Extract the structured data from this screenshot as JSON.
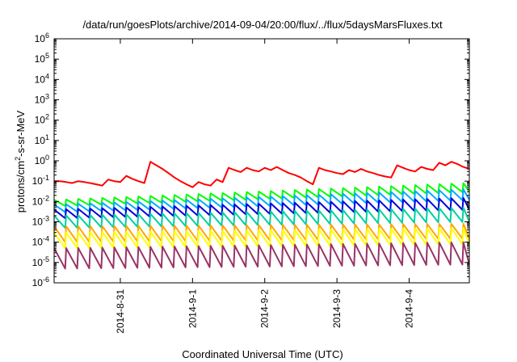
{
  "chart_data": {
    "type": "line",
    "title": "/data/run/goesPlots/archive/2014-09-04/20:00/flux/../flux/5daysMarsFluxes.txt",
    "xlabel": "Coordinated Universal Time (UTC)",
    "ylabel": {
      "prefix": "protons/cm",
      "superscript": "2",
      "suffix": "-s-sr-MeV"
    },
    "y_scale": "log",
    "ylim": [
      1e-06,
      1000000.0
    ],
    "y_ticks": [
      {
        "value": 1e-06,
        "base": "10",
        "exp": "-6"
      },
      {
        "value": 1e-05,
        "base": "10",
        "exp": "-5"
      },
      {
        "value": 0.0001,
        "base": "10",
        "exp": "-4"
      },
      {
        "value": 0.001,
        "base": "10",
        "exp": "-3"
      },
      {
        "value": 0.01,
        "base": "10",
        "exp": "-2"
      },
      {
        "value": 0.1,
        "base": "10",
        "exp": "-1"
      },
      {
        "value": 1,
        "base": "10",
        "exp": "0"
      },
      {
        "value": 10,
        "base": "10",
        "exp": "1"
      },
      {
        "value": 100,
        "base": "10",
        "exp": "2"
      },
      {
        "value": 1000,
        "base": "10",
        "exp": "3"
      },
      {
        "value": 10000,
        "base": "10",
        "exp": "4"
      },
      {
        "value": 100000,
        "base": "10",
        "exp": "5"
      },
      {
        "value": 1000000,
        "base": "10",
        "exp": "6"
      }
    ],
    "xlim": [
      "2014-08-30T02:00",
      "2014-09-04T20:00"
    ],
    "x_ticks": [
      {
        "value": "2014-08-31T00:00",
        "label": "2014-8-31"
      },
      {
        "value": "2014-09-01T00:00",
        "label": "2014-9-1"
      },
      {
        "value": "2014-09-02T00:00",
        "label": "2014-9-2"
      },
      {
        "value": "2014-09-03T00:00",
        "label": "2014-9-3"
      },
      {
        "value": "2014-09-04T00:00",
        "label": "2014-9-4"
      }
    ],
    "grid": false,
    "series": [
      {
        "color": "#ff0000",
        "values": [
          [
            "2014-08-30T02:00",
            0.1
          ],
          [
            "2014-08-30T04:00",
            0.1
          ],
          [
            "2014-08-30T06:00",
            0.09
          ],
          [
            "2014-08-30T08:00",
            0.08
          ],
          [
            "2014-08-30T10:00",
            0.1
          ],
          [
            "2014-08-30T12:00",
            0.09
          ],
          [
            "2014-08-30T14:00",
            0.08
          ],
          [
            "2014-08-30T16:00",
            0.07
          ],
          [
            "2014-08-30T18:00",
            0.06
          ],
          [
            "2014-08-30T20:00",
            0.12
          ],
          [
            "2014-08-30T22:00",
            0.1
          ],
          [
            "2014-08-31T00:00",
            0.09
          ],
          [
            "2014-08-31T02:00",
            0.18
          ],
          [
            "2014-08-31T04:00",
            0.13
          ],
          [
            "2014-08-31T06:00",
            0.1
          ],
          [
            "2014-08-31T08:00",
            0.08
          ],
          [
            "2014-08-31T10:00",
            0.9
          ],
          [
            "2014-08-31T12:00",
            0.6
          ],
          [
            "2014-08-31T14:00",
            0.4
          ],
          [
            "2014-08-31T16:00",
            0.25
          ],
          [
            "2014-08-31T18:00",
            0.15
          ],
          [
            "2014-08-31T20:00",
            0.1
          ],
          [
            "2014-08-31T22:00",
            0.07
          ],
          [
            "2014-09-01T00:00",
            0.05
          ],
          [
            "2014-09-01T02:00",
            0.09
          ],
          [
            "2014-09-01T04:00",
            0.07
          ],
          [
            "2014-09-01T06:00",
            0.06
          ],
          [
            "2014-09-01T08:00",
            0.12
          ],
          [
            "2014-09-01T10:00",
            0.09
          ],
          [
            "2014-09-01T12:00",
            0.45
          ],
          [
            "2014-09-01T14:00",
            0.35
          ],
          [
            "2014-09-01T16:00",
            0.28
          ],
          [
            "2014-09-01T18:00",
            0.45
          ],
          [
            "2014-09-01T20:00",
            0.35
          ],
          [
            "2014-09-01T22:00",
            0.3
          ],
          [
            "2014-09-02T00:00",
            0.45
          ],
          [
            "2014-09-02T02:00",
            0.35
          ],
          [
            "2014-09-02T04:00",
            0.5
          ],
          [
            "2014-09-02T06:00",
            0.35
          ],
          [
            "2014-09-02T08:00",
            0.25
          ],
          [
            "2014-09-02T10:00",
            0.2
          ],
          [
            "2014-09-02T12:00",
            0.15
          ],
          [
            "2014-09-02T14:00",
            0.1
          ],
          [
            "2014-09-02T16:00",
            0.07
          ],
          [
            "2014-09-02T18:00",
            0.45
          ],
          [
            "2014-09-02T20:00",
            0.35
          ],
          [
            "2014-09-02T22:00",
            0.3
          ],
          [
            "2014-09-03T00:00",
            0.25
          ],
          [
            "2014-09-03T02:00",
            0.22
          ],
          [
            "2014-09-03T04:00",
            0.35
          ],
          [
            "2014-09-03T06:00",
            0.28
          ],
          [
            "2014-09-03T08:00",
            0.4
          ],
          [
            "2014-09-03T10:00",
            0.3
          ],
          [
            "2014-09-03T12:00",
            0.25
          ],
          [
            "2014-09-03T14:00",
            0.2
          ],
          [
            "2014-09-03T16:00",
            0.17
          ],
          [
            "2014-09-03T18:00",
            0.15
          ],
          [
            "2014-09-03T20:00",
            0.6
          ],
          [
            "2014-09-03T22:00",
            0.45
          ],
          [
            "2014-09-04T00:00",
            0.35
          ],
          [
            "2014-09-04T02:00",
            0.3
          ],
          [
            "2014-09-04T04:00",
            0.5
          ],
          [
            "2014-09-04T06:00",
            0.4
          ],
          [
            "2014-09-04T08:00",
            0.35
          ],
          [
            "2014-09-04T10:00",
            0.8
          ],
          [
            "2014-09-04T12:00",
            0.6
          ],
          [
            "2014-09-04T14:00",
            0.9
          ],
          [
            "2014-09-04T16:00",
            0.7
          ],
          [
            "2014-09-04T18:00",
            0.5
          ],
          [
            "2014-09-04T20:00",
            0.4
          ]
        ]
      },
      {
        "color": "#00ff00",
        "sawtooth": {
          "start": [
            0.012,
            0.006
          ],
          "end": [
            0.08,
            0.03
          ],
          "period_hours": 4
        }
      },
      {
        "color": "#00aaff",
        "sawtooth": {
          "start": [
            0.007,
            0.003
          ],
          "end": [
            0.04,
            0.012
          ],
          "period_hours": 4
        }
      },
      {
        "color": "#0000dd",
        "sawtooth": {
          "start": [
            0.004,
            0.0015
          ],
          "end": [
            0.015,
            0.004
          ],
          "period_hours": 4
        }
      },
      {
        "color": "#00d0a0",
        "sawtooth": {
          "start": [
            0.002,
            0.0005
          ],
          "end": [
            0.005,
            0.001
          ],
          "period_hours": 4
        }
      },
      {
        "color": "#ffa500",
        "sawtooth": {
          "start": [
            0.0006,
            0.0001
          ],
          "end": [
            0.0008,
            0.00015
          ],
          "period_hours": 4
        }
      },
      {
        "color": "#ffff00",
        "sawtooth": {
          "start": [
            0.0003,
            5e-05
          ],
          "end": [
            0.0005,
            8e-05
          ],
          "period_hours": 4
        }
      },
      {
        "color": "#993366",
        "sawtooth": {
          "start": [
            5e-05,
            5e-06
          ],
          "end": [
            0.0001,
            8e-06
          ],
          "period_hours": 4
        }
      }
    ]
  }
}
